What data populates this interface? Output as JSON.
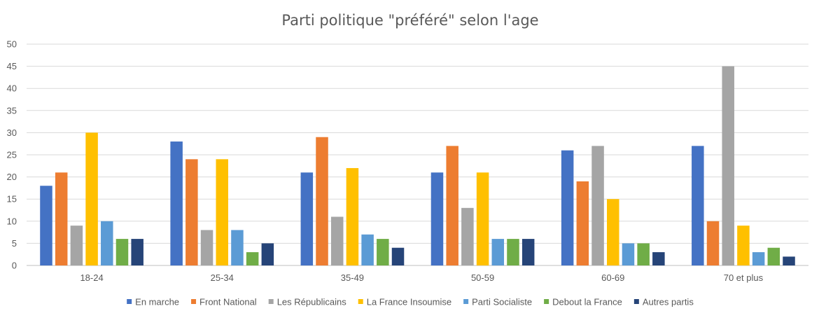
{
  "chart_data": {
    "type": "bar",
    "title": "Parti politique \"préféré\" selon l'age",
    "xlabel": "",
    "ylabel": "",
    "ylim": [
      0,
      50
    ],
    "yticks": [
      0,
      5,
      10,
      15,
      20,
      25,
      30,
      35,
      40,
      45,
      50
    ],
    "grid": true,
    "legend_position": "bottom",
    "categories": [
      "18-24",
      "25-34",
      "35-49",
      "50-59",
      "60-69",
      "70 et plus"
    ],
    "series": [
      {
        "name": "En marche",
        "color": "#4472C4",
        "values": [
          18,
          28,
          21,
          21,
          26,
          27
        ]
      },
      {
        "name": "Front National",
        "color": "#ED7D31",
        "values": [
          21,
          24,
          29,
          27,
          19,
          10
        ]
      },
      {
        "name": "Les Républicains",
        "color": "#A5A5A5",
        "values": [
          9,
          8,
          11,
          13,
          27,
          45
        ]
      },
      {
        "name": "La France Insoumise",
        "color": "#FFC000",
        "values": [
          30,
          24,
          22,
          21,
          15,
          9
        ]
      },
      {
        "name": "Parti Socialiste",
        "color": "#5B9BD5",
        "values": [
          10,
          8,
          7,
          6,
          5,
          3
        ]
      },
      {
        "name": "Debout la France",
        "color": "#70AD47",
        "values": [
          6,
          3,
          6,
          6,
          5,
          4
        ]
      },
      {
        "name": "Autres partis",
        "color": "#264478",
        "values": [
          6,
          5,
          4,
          6,
          3,
          2
        ]
      }
    ]
  }
}
